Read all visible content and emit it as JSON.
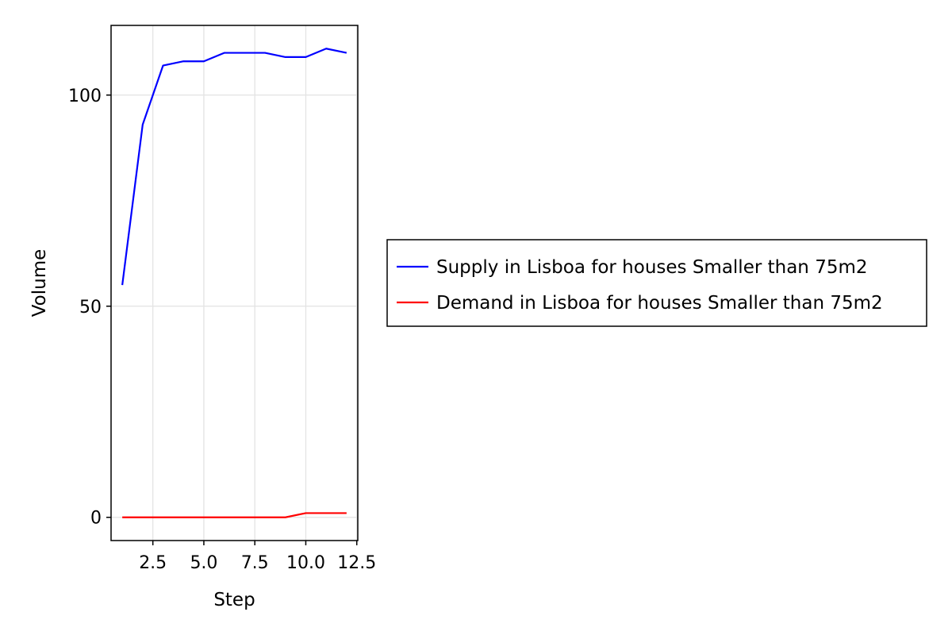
{
  "chart_data": {
    "type": "line",
    "xlabel": "Step",
    "ylabel": "Volume",
    "xlim": [
      0.45,
      12.55
    ],
    "ylim": [
      -5.5,
      116.5
    ],
    "x_ticks": [
      2.5,
      5.0,
      7.5,
      10.0,
      12.5
    ],
    "x_tick_labels": [
      "2.5",
      "5.0",
      "7.5",
      "10.0",
      "12.5"
    ],
    "y_ticks": [
      0,
      50,
      100
    ],
    "y_tick_labels": [
      "0",
      "50",
      "100"
    ],
    "grid": true,
    "legend_position": "right",
    "series": [
      {
        "name": "Supply in Lisboa for houses Smaller than 75m2",
        "color": "#0000ff",
        "x": [
          1,
          2,
          3,
          4,
          5,
          6,
          7,
          8,
          9,
          10,
          11,
          12
        ],
        "y": [
          55,
          93,
          107,
          108,
          108,
          110,
          110,
          110,
          109,
          109,
          111,
          110
        ]
      },
      {
        "name": "Demand in Lisboa for houses Smaller than 75m2",
        "color": "#ff0000",
        "x": [
          1,
          2,
          3,
          4,
          5,
          6,
          7,
          8,
          9,
          10,
          11,
          12
        ],
        "y": [
          0,
          0,
          0,
          0,
          0,
          0,
          0,
          0,
          0,
          1,
          1,
          1
        ]
      }
    ]
  }
}
